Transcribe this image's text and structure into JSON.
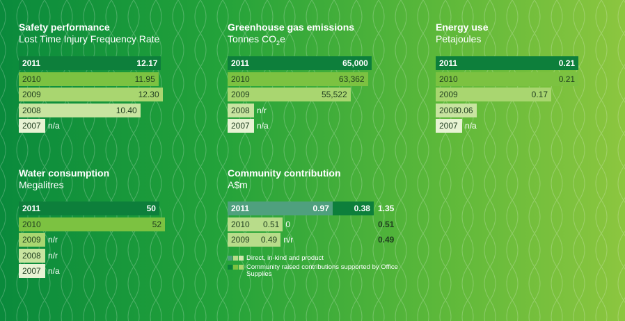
{
  "colors": {
    "y2011": "#0d7f3b",
    "y2010": "#7cc241",
    "y2009": "#a9d670",
    "y2008": "#c8e4a0",
    "y2007": "#e8f3d4",
    "comm_direct_2011": "#4fa07e",
    "comm_direct_light": "#b8dc8a",
    "comm_raised_2011": "#0d7f3b"
  },
  "chart_data": [
    {
      "type": "bar",
      "title": "Safety performance",
      "subtitle": "Lost Time Injury Frequency Rate",
      "categories": [
        "2011",
        "2010",
        "2009",
        "2008",
        "2007"
      ],
      "values": [
        12.17,
        11.95,
        12.3,
        10.4,
        null
      ],
      "labels": [
        "12.17",
        "11.95",
        "12.30",
        "10.40",
        "n/a"
      ],
      "xlim": [
        0,
        12.5
      ]
    },
    {
      "type": "bar",
      "title": "Greenhouse gas emissions",
      "subtitle_main": "Tonnes CO",
      "subtitle_sub": "2",
      "subtitle_tail": "e",
      "categories": [
        "2011",
        "2010",
        "2009",
        "2008",
        "2007"
      ],
      "values": [
        65000,
        63362,
        55522,
        null,
        null
      ],
      "labels": [
        "65,000",
        "63,362",
        "55,522",
        "n/r",
        "n/a"
      ],
      "xlim": [
        0,
        66000
      ]
    },
    {
      "type": "bar",
      "title": "Energy use",
      "subtitle": "Petajoules",
      "categories": [
        "2011",
        "2010",
        "2009",
        "2008",
        "2007"
      ],
      "values": [
        0.21,
        0.21,
        0.17,
        0.06,
        null
      ],
      "labels": [
        "0.21",
        "0.21",
        "0.17",
        "0.06",
        "n/a"
      ],
      "xlim": [
        0,
        0.215
      ]
    },
    {
      "type": "bar",
      "title": "Water consumption",
      "subtitle": "Megalitres",
      "categories": [
        "2011",
        "2010",
        "2009",
        "2008",
        "2007"
      ],
      "values": [
        50,
        52,
        null,
        null,
        null
      ],
      "labels": [
        "50",
        "52",
        "n/r",
        "n/r",
        "n/a"
      ],
      "xlim": [
        0,
        52
      ]
    },
    {
      "type": "bar",
      "stacked": true,
      "title": "Community contribution",
      "subtitle": "A$m",
      "categories": [
        "2011",
        "2010",
        "2009"
      ],
      "series": [
        {
          "name": "Direct, in-kind and product",
          "values": [
            0.97,
            0.51,
            0.49
          ],
          "labels": [
            "0.97",
            "0.51",
            "0.49"
          ]
        },
        {
          "name": "Community raised contributions supported by Office Supplies",
          "values": [
            0.38,
            0,
            null
          ],
          "labels": [
            "0.38",
            "0",
            "n/r"
          ]
        }
      ],
      "totals": [
        "1.35",
        "0.51",
        "0.49"
      ],
      "xlim": [
        0,
        1.35
      ]
    }
  ]
}
